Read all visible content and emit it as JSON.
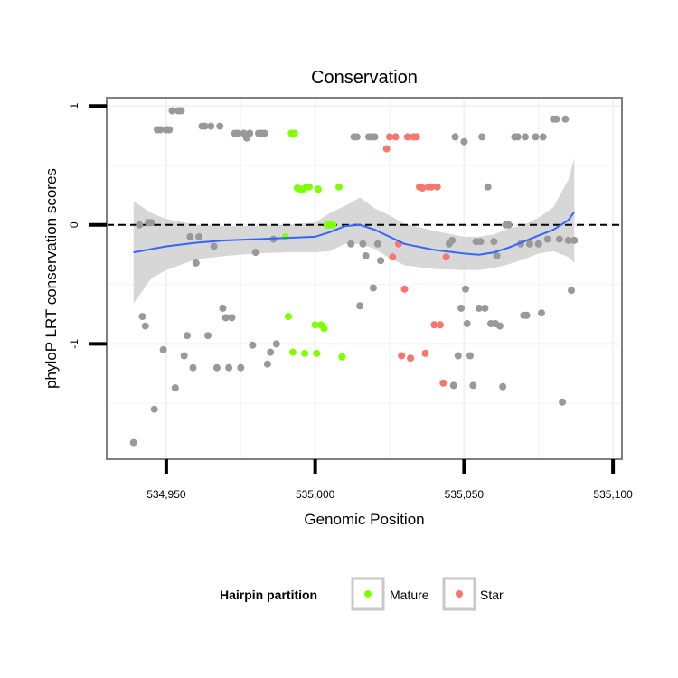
{
  "chart_data": {
    "type": "scatter",
    "title": "Conservation",
    "xlabel": "Genomic Position",
    "ylabel": "phyloP LRT conservation scores",
    "xlim": [
      534930,
      535103
    ],
    "ylim": [
      -1.97,
      1.07
    ],
    "xticks": [
      534950,
      535000,
      535050,
      535100
    ],
    "xtick_labels": [
      "534,950",
      "535,000",
      "535,050",
      "535,100"
    ],
    "yticks": [
      1,
      0,
      -1
    ],
    "ytick_labels": [
      "1",
      "0",
      "-1"
    ],
    "grid": true,
    "reference_line": {
      "y": 0,
      "style": "dashed"
    },
    "colors": {
      "other": "#999999",
      "Mature": "#7fff00",
      "Star": "#f8766d",
      "smooth": "#3366ff",
      "band": "#d3d3d3"
    },
    "legend": {
      "title": "Hairpin partition",
      "placement": "bottom",
      "entries": [
        {
          "name": "Mature",
          "color": "#7fff00"
        },
        {
          "name": "Star",
          "color": "#f8766d"
        }
      ]
    },
    "series": [
      {
        "group": "other",
        "color": "#999999",
        "points": [
          [
            534939,
            -1.83
          ],
          [
            534941,
            0.0
          ],
          [
            534942,
            -0.77
          ],
          [
            534943,
            -0.85
          ],
          [
            534944,
            0.02
          ],
          [
            534945,
            0.02
          ],
          [
            534946,
            -1.55
          ],
          [
            534947,
            0.8
          ],
          [
            534948,
            0.8
          ],
          [
            534949,
            -1.05
          ],
          [
            534950,
            0.8
          ],
          [
            534951,
            0.8
          ],
          [
            534952,
            0.96
          ],
          [
            534953,
            -1.37
          ],
          [
            534954,
            0.96
          ],
          [
            534955,
            0.96
          ],
          [
            534956,
            -1.1
          ],
          [
            534957,
            -0.93
          ],
          [
            534958,
            -0.1
          ],
          [
            534959,
            -1.2
          ],
          [
            534960,
            -0.32
          ],
          [
            534961,
            -0.1
          ],
          [
            534962,
            0.83
          ],
          [
            534963,
            0.83
          ],
          [
            534964,
            -0.93
          ],
          [
            534965,
            0.83
          ],
          [
            534966,
            -0.18
          ],
          [
            534967,
            -1.2
          ],
          [
            534968,
            0.83
          ],
          [
            534969,
            -0.7
          ],
          [
            534970,
            -0.78
          ],
          [
            534971,
            -1.2
          ],
          [
            534972,
            -0.78
          ],
          [
            534973,
            0.77
          ],
          [
            534974,
            0.77
          ],
          [
            534975,
            -1.2
          ],
          [
            534976,
            0.77
          ],
          [
            534977,
            0.73
          ],
          [
            534978,
            0.77
          ],
          [
            534979,
            -1.01
          ],
          [
            534980,
            -0.23
          ],
          [
            534981,
            0.77
          ],
          [
            534982,
            0.77
          ],
          [
            534983,
            0.77
          ],
          [
            534984,
            -1.17
          ],
          [
            534985,
            -1.07
          ],
          [
            534986,
            -0.12
          ],
          [
            534987,
            -1.0
          ],
          [
            535012,
            -0.16
          ],
          [
            535013,
            0.74
          ],
          [
            535014,
            0.74
          ],
          [
            535015,
            -0.68
          ],
          [
            535016,
            -0.16
          ],
          [
            535017,
            -0.26
          ],
          [
            535018,
            0.74
          ],
          [
            535019,
            0.74
          ],
          [
            535019.5,
            -0.53
          ],
          [
            535020,
            0.74
          ],
          [
            535021,
            -0.16
          ],
          [
            535022,
            -0.3
          ],
          [
            535045,
            -0.16
          ],
          [
            535046,
            -0.13
          ],
          [
            535046.5,
            -1.35
          ],
          [
            535047,
            0.74
          ],
          [
            535048,
            -1.1
          ],
          [
            535049,
            -0.7
          ],
          [
            535050,
            0.7
          ],
          [
            535050.5,
            -0.54
          ],
          [
            535051,
            -0.83
          ],
          [
            535052,
            -1.1
          ],
          [
            535053,
            -1.35
          ],
          [
            535054,
            -0.14
          ],
          [
            535055,
            -0.7
          ],
          [
            535055.5,
            -0.14
          ],
          [
            535056,
            0.74
          ],
          [
            535057,
            -0.7
          ],
          [
            535058,
            0.32
          ],
          [
            535059,
            -0.83
          ],
          [
            535060,
            -0.14
          ],
          [
            535060.5,
            -0.83
          ],
          [
            535061,
            -0.26
          ],
          [
            535062,
            -0.85
          ],
          [
            535063,
            -1.36
          ],
          [
            535064,
            0.0
          ],
          [
            535065,
            0.0
          ],
          [
            535067,
            0.74
          ],
          [
            535068,
            0.74
          ],
          [
            535069,
            -0.16
          ],
          [
            535070,
            -0.76
          ],
          [
            535070.5,
            0.74
          ],
          [
            535071,
            -0.76
          ],
          [
            535072,
            -0.16
          ],
          [
            535074,
            0.74
          ],
          [
            535075,
            -0.16
          ],
          [
            535076,
            -0.74
          ],
          [
            535076.5,
            0.74
          ],
          [
            535078,
            -0.12
          ],
          [
            535080,
            0.89
          ],
          [
            535081,
            0.89
          ],
          [
            535082,
            -0.12
          ],
          [
            535083,
            -1.49
          ],
          [
            535084,
            0.89
          ],
          [
            535085,
            -0.13
          ],
          [
            535086,
            -0.55
          ],
          [
            535087,
            -0.13
          ]
        ]
      },
      {
        "group": "Mature",
        "color": "#7fff00",
        "points": [
          [
            534990,
            -0.1
          ],
          [
            534991,
            -0.77
          ],
          [
            534992,
            0.77
          ],
          [
            534993,
            0.77
          ],
          [
            534992.5,
            -1.07
          ],
          [
            534994,
            0.31
          ],
          [
            534995,
            0.3
          ],
          [
            534996,
            0.3
          ],
          [
            534996.5,
            -1.08
          ],
          [
            534997,
            0.32
          ],
          [
            534998,
            0.32
          ],
          [
            535000,
            -0.84
          ],
          [
            535000.5,
            -1.08
          ],
          [
            535001,
            0.3
          ],
          [
            535002,
            -0.84
          ],
          [
            535003,
            -0.87
          ],
          [
            535004,
            0.0
          ],
          [
            535005,
            0.0
          ],
          [
            535006,
            0.0
          ],
          [
            535008,
            0.32
          ],
          [
            535009,
            -1.11
          ]
        ]
      },
      {
        "group": "Star",
        "color": "#f8766d",
        "points": [
          [
            535024,
            0.64
          ],
          [
            535025,
            0.74
          ],
          [
            535026,
            -0.27
          ],
          [
            535027,
            0.74
          ],
          [
            535028,
            -0.16
          ],
          [
            535029,
            -1.1
          ],
          [
            535030,
            -0.54
          ],
          [
            535031,
            0.74
          ],
          [
            535032,
            -1.12
          ],
          [
            535033,
            0.74
          ],
          [
            535034,
            0.74
          ],
          [
            535035,
            0.32
          ],
          [
            535036,
            0.31
          ],
          [
            535037,
            -1.08
          ],
          [
            535038,
            0.32
          ],
          [
            535039,
            0.32
          ],
          [
            535040,
            -0.84
          ],
          [
            535041,
            0.32
          ],
          [
            535042,
            -0.84
          ],
          [
            535043,
            -1.33
          ],
          [
            535044,
            -0.27
          ]
        ]
      }
    ],
    "smooth": {
      "method": "loess",
      "fit": [
        [
          534939,
          -0.23
        ],
        [
          534950,
          -0.18
        ],
        [
          534960,
          -0.15
        ],
        [
          534970,
          -0.13
        ],
        [
          534980,
          -0.12
        ],
        [
          534990,
          -0.11
        ],
        [
          535000,
          -0.1
        ],
        [
          535005,
          -0.06
        ],
        [
          535010,
          -0.01
        ],
        [
          535015,
          0.0
        ],
        [
          535020,
          -0.04
        ],
        [
          535025,
          -0.1
        ],
        [
          535030,
          -0.16
        ],
        [
          535040,
          -0.21
        ],
        [
          535050,
          -0.24
        ],
        [
          535055,
          -0.25
        ],
        [
          535060,
          -0.23
        ],
        [
          535065,
          -0.19
        ],
        [
          535070,
          -0.14
        ],
        [
          535075,
          -0.09
        ],
        [
          535080,
          -0.04
        ],
        [
          535085,
          0.04
        ],
        [
          535087,
          0.11
        ]
      ],
      "lower": [
        [
          534939,
          -0.66
        ],
        [
          534945,
          -0.45
        ],
        [
          534950,
          -0.38
        ],
        [
          534960,
          -0.29
        ],
        [
          534970,
          -0.26
        ],
        [
          534980,
          -0.24
        ],
        [
          534990,
          -0.23
        ],
        [
          535000,
          -0.23
        ],
        [
          535005,
          -0.22
        ],
        [
          535010,
          -0.16
        ],
        [
          535015,
          -0.16
        ],
        [
          535020,
          -0.2
        ],
        [
          535025,
          -0.28
        ],
        [
          535030,
          -0.34
        ],
        [
          535040,
          -0.37
        ],
        [
          535050,
          -0.38
        ],
        [
          535055,
          -0.38
        ],
        [
          535060,
          -0.36
        ],
        [
          535065,
          -0.33
        ],
        [
          535070,
          -0.29
        ],
        [
          535075,
          -0.24
        ],
        [
          535080,
          -0.22
        ],
        [
          535085,
          -0.27
        ],
        [
          535087,
          -0.32
        ]
      ],
      "upper": [
        [
          534939,
          0.2
        ],
        [
          534945,
          0.1
        ],
        [
          534950,
          0.05
        ],
        [
          534960,
          0.0
        ],
        [
          534970,
          -0.01
        ],
        [
          534980,
          -0.01
        ],
        [
          534990,
          0.0
        ],
        [
          535000,
          0.02
        ],
        [
          535005,
          0.1
        ],
        [
          535010,
          0.16
        ],
        [
          535015,
          0.23
        ],
        [
          535020,
          0.14
        ],
        [
          535025,
          0.08
        ],
        [
          535030,
          0.01
        ],
        [
          535040,
          -0.05
        ],
        [
          535050,
          -0.1
        ],
        [
          535055,
          -0.1
        ],
        [
          535060,
          -0.08
        ],
        [
          535065,
          -0.03
        ],
        [
          535070,
          0.0
        ],
        [
          535075,
          0.06
        ],
        [
          535080,
          0.15
        ],
        [
          535085,
          0.38
        ],
        [
          535087,
          0.56
        ]
      ]
    }
  }
}
